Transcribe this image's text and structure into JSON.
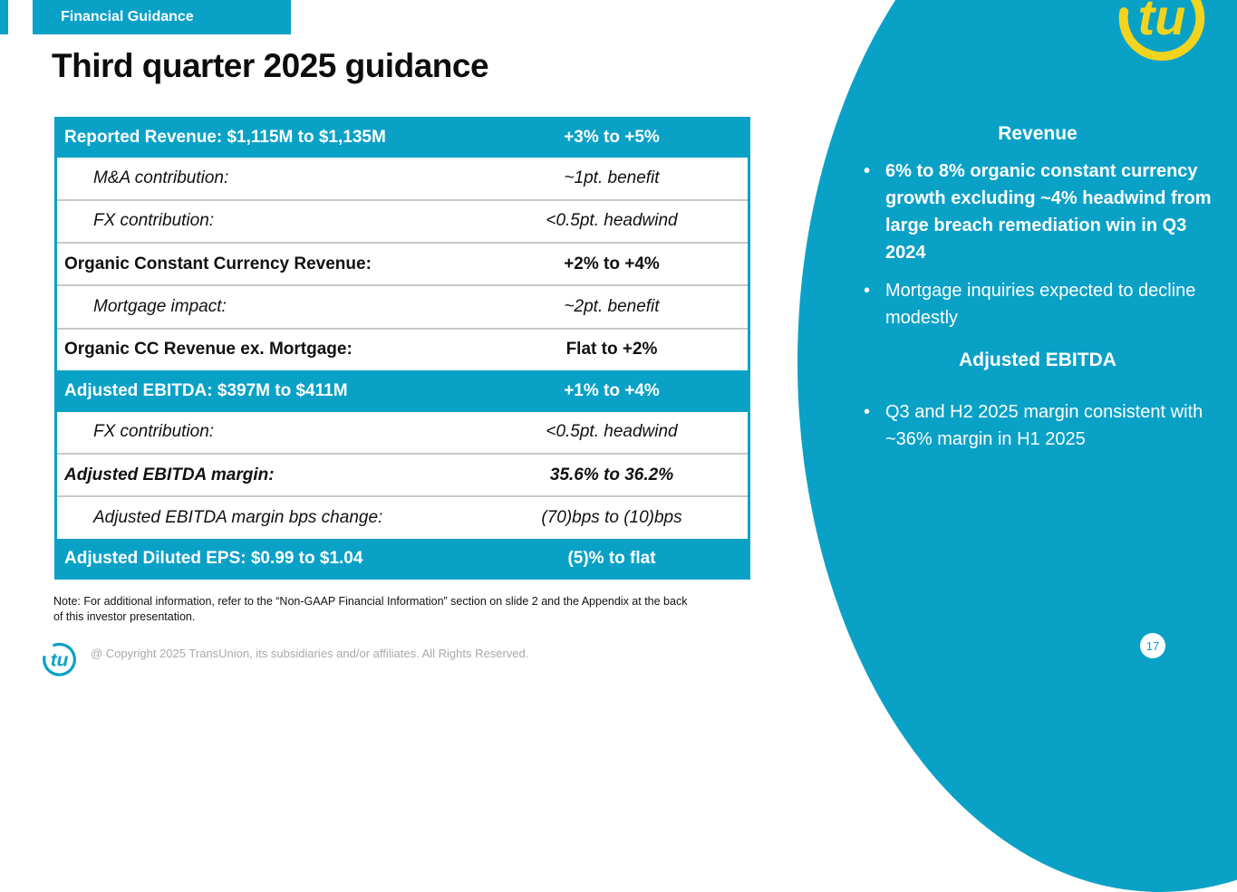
{
  "slide": {
    "category_tab": "Financial Guidance",
    "title": "Third quarter 2025 guidance",
    "page_number": "17",
    "copyright": "@ Copyright 2025 TransUnion, its subsidiaries and/or affiliates.  All Rights Reserved.",
    "note_line1": "Note: For additional information, refer to the “Non-GAAP Financial Information” section on slide 2 and the Appendix at the back",
    "note_line2": "of this investor presentation.",
    "logo_text": "tu",
    "bullet_glyph": "•"
  },
  "colors": {
    "teal_accent": "#0AA1C7",
    "logo_yellow": "#F2D41E",
    "separator_gray": "#C8C8C8",
    "copyright_gray": "#A9A9A9"
  },
  "guidance_table": {
    "rows": [
      {
        "label": "Reported Revenue: $1,115M to $1,135M",
        "value": "+3% to +5%",
        "style": "header"
      },
      {
        "label": "M&A contribution:",
        "value": "~1pt. benefit",
        "style": "sub-italic"
      },
      {
        "label": "FX contribution:",
        "value": "<0.5pt. headwind",
        "style": "sub-italic"
      },
      {
        "label": "Organic Constant Currency Revenue:",
        "value": "+2% to +4%",
        "style": "bold"
      },
      {
        "label": "Mortgage impact:",
        "value": "~2pt. benefit",
        "style": "sub-italic"
      },
      {
        "label": "Organic CC Revenue ex. Mortgage:",
        "value": "Flat to +2%",
        "style": "bold"
      },
      {
        "label": "Adjusted EBITDA: $397M to $411M",
        "value": "+1% to +4%",
        "style": "header"
      },
      {
        "label": "FX contribution:",
        "value": "<0.5pt. headwind",
        "style": "sub-italic"
      },
      {
        "label": "Adjusted EBITDA margin:",
        "value": "35.6% to 36.2%",
        "style": "bold-italic"
      },
      {
        "label": "Adjusted EBITDA margin bps change:",
        "value": "(70)bps to (10)bps",
        "style": "sub-italic"
      },
      {
        "label": "Adjusted Diluted EPS: $0.99 to $1.04",
        "value": "(5)% to flat",
        "style": "header"
      }
    ]
  },
  "side_panel": {
    "sections": [
      {
        "heading": "Revenue",
        "bullets": [
          {
            "text": "6% to 8% organic constant currency growth excluding ~4% headwind from large breach remediation win in Q3 2024",
            "bold": true
          },
          {
            "text": "Mortgage inquiries expected to decline modestly",
            "bold": false
          }
        ]
      },
      {
        "heading": "Adjusted EBITDA",
        "bullets": [
          {
            "text": "Q3 and H2 2025 margin consistent with ~36% margin in H1 2025",
            "bold": false
          }
        ]
      }
    ]
  }
}
